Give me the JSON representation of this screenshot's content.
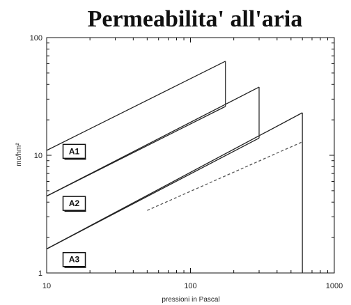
{
  "chart_data": {
    "type": "line",
    "title": "Permeabilita' all'aria",
    "xlabel": "pressioni in Pascal",
    "ylabel": "mc/hm²",
    "x_scale": "log",
    "y_scale": "log",
    "xlim": [
      10,
      1000
    ],
    "ylim": [
      1,
      100
    ],
    "x_ticks": [
      {
        "value": 10,
        "label": "10"
      },
      {
        "value": 100,
        "label": "100"
      },
      {
        "value": 1000,
        "label": "1000"
      }
    ],
    "y_ticks": [
      {
        "value": 1,
        "label": "1"
      },
      {
        "value": 10,
        "label": "10"
      },
      {
        "value": 100,
        "label": "100"
      }
    ],
    "grid": false,
    "series": [
      {
        "name": "A1",
        "style": "solid",
        "x": [
          10,
          175
        ],
        "y": [
          11,
          63
        ]
      },
      {
        "name": "A1",
        "style": "solid",
        "x": [
          10,
          175
        ],
        "y": [
          4.5,
          26
        ]
      },
      {
        "name": "A2",
        "style": "solid",
        "x": [
          10,
          300
        ],
        "y": [
          4.5,
          38
        ]
      },
      {
        "name": "A2",
        "style": "solid",
        "x": [
          10,
          300
        ],
        "y": [
          1.6,
          14
        ]
      },
      {
        "name": "A3",
        "style": "solid",
        "x": [
          10,
          600
        ],
        "y": [
          1.6,
          23
        ]
      },
      {
        "name": "A3",
        "style": "dashed",
        "x": [
          50,
          600
        ],
        "y": [
          3.4,
          13
        ]
      }
    ],
    "vertical_segments": [
      {
        "x": 175,
        "y": [
          26,
          63
        ]
      },
      {
        "x": 300,
        "y": [
          14,
          38
        ]
      },
      {
        "x": 600,
        "y": [
          1,
          23
        ]
      }
    ],
    "annotations": [
      {
        "text": "A1",
        "x": 13,
        "y": 10.8
      },
      {
        "text": "A2",
        "x": 13,
        "y": 3.9
      },
      {
        "text": "A3",
        "x": 13,
        "y": 1.3
      }
    ]
  }
}
